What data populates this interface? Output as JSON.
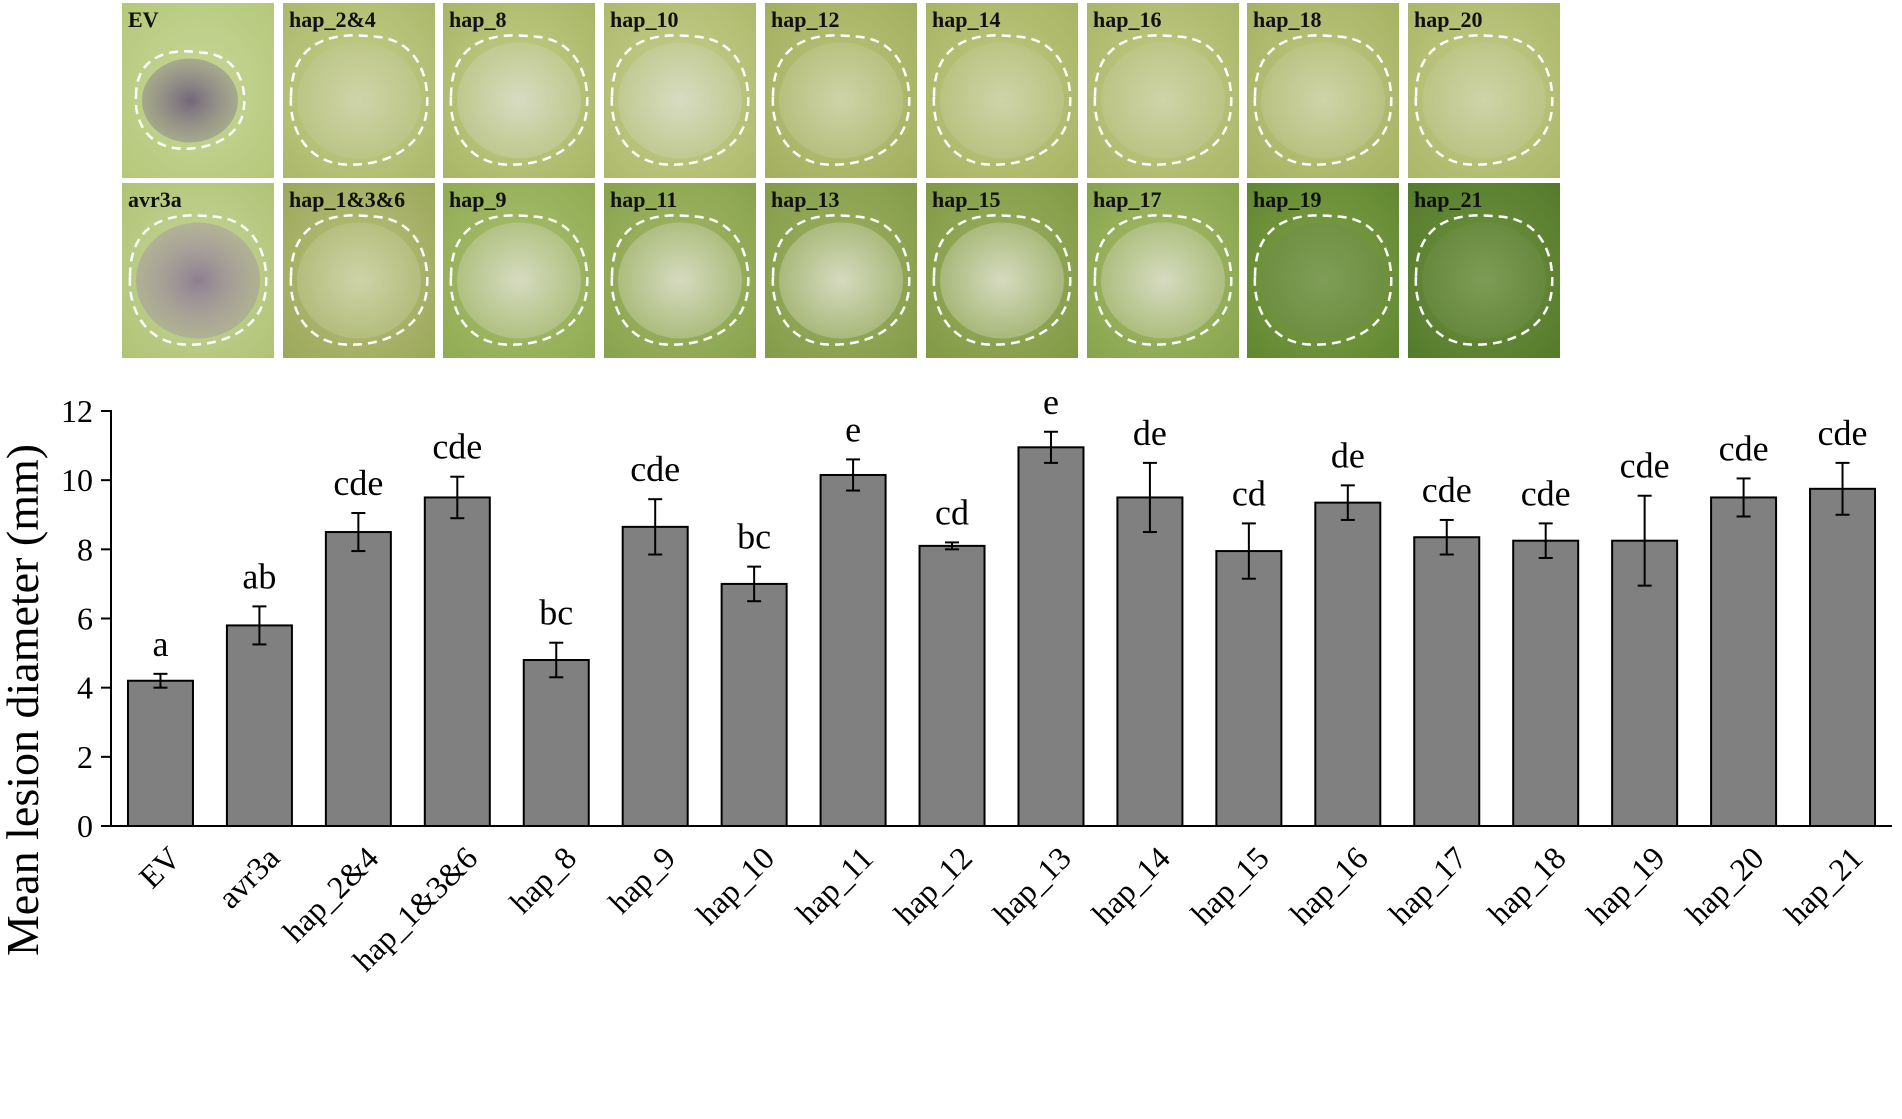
{
  "photos": [
    {
      "label": "EV",
      "lesion": "dark-purple"
    },
    {
      "label": "hap_2&4",
      "lesion": "faint"
    },
    {
      "label": "hap_8",
      "lesion": "pale"
    },
    {
      "label": "hap_10",
      "lesion": "pale"
    },
    {
      "label": "hap_12",
      "lesion": "faint"
    },
    {
      "label": "hap_14",
      "lesion": "faint"
    },
    {
      "label": "hap_16",
      "lesion": "faint"
    },
    {
      "label": "hap_18",
      "lesion": "faint"
    },
    {
      "label": "hap_20",
      "lesion": "faint"
    },
    {
      "label": "avr3a",
      "lesion": "purple"
    },
    {
      "label": "hap_1&3&6",
      "lesion": "faint"
    },
    {
      "label": "hap_9",
      "lesion": "pale"
    },
    {
      "label": "hap_11",
      "lesion": "pale"
    },
    {
      "label": "hap_13",
      "lesion": "pale"
    },
    {
      "label": "hap_15",
      "lesion": "pale"
    },
    {
      "label": "hap_17",
      "lesion": "pale"
    },
    {
      "label": "hap_19",
      "lesion": "dark-green"
    },
    {
      "label": "hap_21",
      "lesion": "dark-green"
    }
  ],
  "chart_data": {
    "type": "bar",
    "title": "",
    "xlabel": "",
    "ylabel": "Mean lesion diameter (mm)",
    "ylim": [
      0,
      12
    ],
    "yticks": [
      0,
      2,
      4,
      6,
      8,
      10,
      12
    ],
    "grid": false,
    "bar_color": "#808080",
    "categories": [
      "EV",
      "avr3a",
      "hap_2&4",
      "hap_1&3&6",
      "hap_8",
      "hap_9",
      "hap_10",
      "hap_11",
      "hap_12",
      "hap_13",
      "hap_14",
      "hap_15",
      "hap_16",
      "hap_17",
      "hap_18",
      "hap_19",
      "hap_20",
      "hap_21"
    ],
    "values": [
      4.2,
      5.8,
      8.5,
      9.5,
      4.8,
      8.65,
      7.0,
      10.15,
      8.1,
      10.95,
      9.5,
      7.95,
      9.35,
      8.35,
      8.25,
      8.25,
      9.5,
      9.75
    ],
    "errors": [
      0.2,
      0.55,
      0.55,
      0.6,
      0.5,
      0.8,
      0.5,
      0.45,
      0.1,
      0.45,
      1.0,
      0.8,
      0.5,
      0.5,
      0.5,
      1.3,
      0.55,
      0.75
    ],
    "significance_labels": [
      "a",
      "ab",
      "cde",
      "cde",
      "bc",
      "cde",
      "bc",
      "e",
      "cd",
      "e",
      "de",
      "cd",
      "de",
      "cde",
      "cde",
      "cde",
      "cde",
      "cde"
    ]
  }
}
